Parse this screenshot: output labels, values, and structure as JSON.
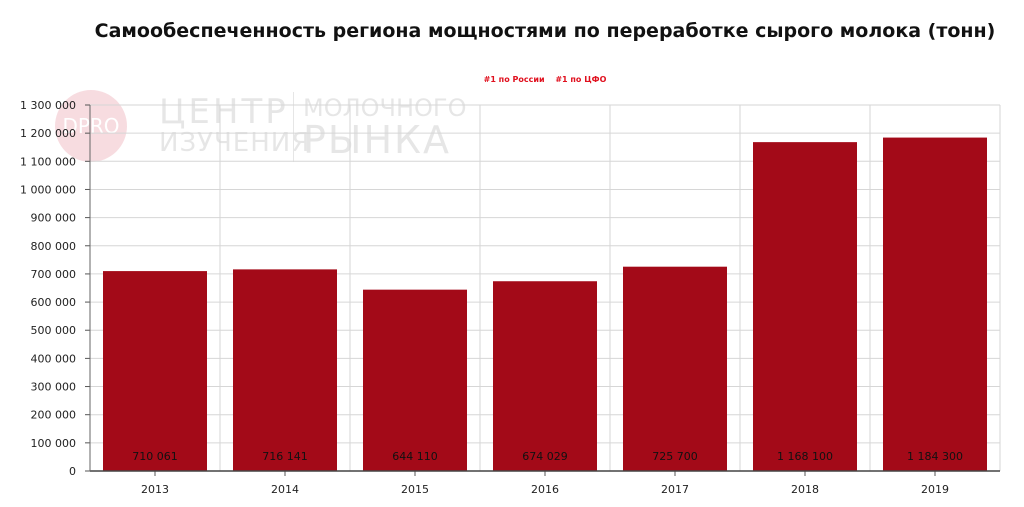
{
  "chart_data": {
    "type": "bar",
    "title": "Самообеспеченность региона мощностями по переработке сырого молока (тонн)",
    "legend": [
      "#1 по России",
      "#1 по ЦФО"
    ],
    "categories": [
      "2013",
      "2014",
      "2015",
      "2016",
      "2017",
      "2018",
      "2019"
    ],
    "values": [
      710061,
      716141,
      644110,
      674029,
      725700,
      1168100,
      1184300
    ],
    "data_labels": [
      "710 061",
      "716 141",
      "644 110",
      "674 029",
      "725 700",
      "1 168 100",
      "1 184 300"
    ],
    "ylim": [
      0,
      1300000
    ],
    "yticks": [
      0,
      100000,
      200000,
      300000,
      400000,
      500000,
      600000,
      700000,
      800000,
      900000,
      1000000,
      1100000,
      1200000,
      1300000
    ],
    "ytick_labels": [
      "0",
      "100 000",
      "200 000",
      "300 000",
      "400 000",
      "500 000",
      "600 000",
      "700 000",
      "800 000",
      "900 000",
      "1 000 000",
      "1 100 000",
      "1 200 000",
      "1 300 000"
    ],
    "grid": true,
    "bar_color": "#a30a18",
    "legend_color": "#e0101e"
  },
  "watermark": {
    "badge": "DPRO",
    "line1a": "ЦЕНТР",
    "line1b": "ИЗУЧЕНИЯ",
    "line2a": "МОЛОЧНОГО",
    "line2b": "РЫНКА"
  }
}
